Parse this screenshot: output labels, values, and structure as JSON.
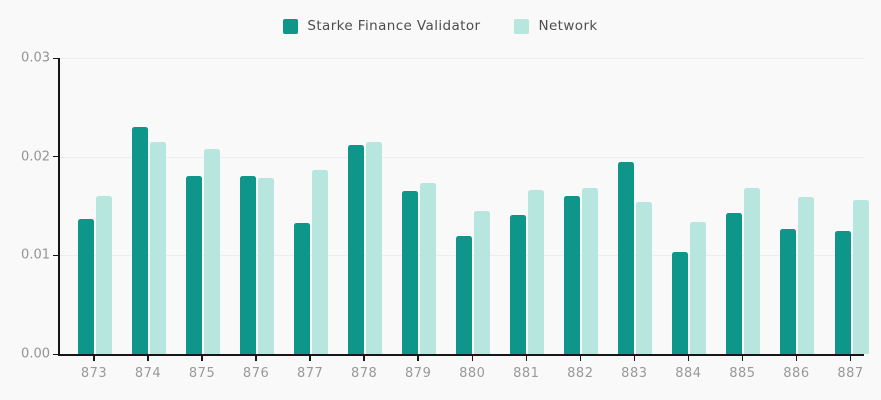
{
  "legend": {
    "items": [
      {
        "label": "Starke Finance Validator",
        "color": "#0f968a"
      },
      {
        "label": "Network",
        "color": "#b7e6df"
      }
    ]
  },
  "chart_data": {
    "type": "bar",
    "title": "",
    "xlabel": "",
    "ylabel": "",
    "categories": [
      "873",
      "874",
      "875",
      "876",
      "877",
      "878",
      "879",
      "880",
      "881",
      "882",
      "883",
      "884",
      "885",
      "886",
      "887"
    ],
    "series": [
      {
        "name": "Starke Finance Validator",
        "color": "#0f968a",
        "values": [
          0.0137,
          0.023,
          0.018,
          0.018,
          0.0133,
          0.0212,
          0.0165,
          0.012,
          0.0141,
          0.016,
          0.0195,
          0.0103,
          0.0143,
          0.0127,
          0.0125
        ]
      },
      {
        "name": "Network",
        "color": "#b7e6df",
        "values": [
          0.016,
          0.0215,
          0.0208,
          0.0178,
          0.0187,
          0.0215,
          0.0173,
          0.0145,
          0.0166,
          0.0168,
          0.0154,
          0.0134,
          0.0168,
          0.0159,
          0.0156
        ]
      }
    ],
    "ylim": [
      0,
      0.03
    ],
    "yticks": [
      0.0,
      0.01,
      0.02,
      0.03
    ],
    "ytick_labels": [
      "0.00",
      "0.01",
      "0.02",
      "0.03"
    ],
    "grid": true,
    "legend_position": "top-center"
  },
  "colors": {
    "background": "#f9f9f9",
    "axis": "#161616",
    "gridline": "#ededed",
    "tick_label": "#999999",
    "legend_text": "#4d4d4d"
  }
}
